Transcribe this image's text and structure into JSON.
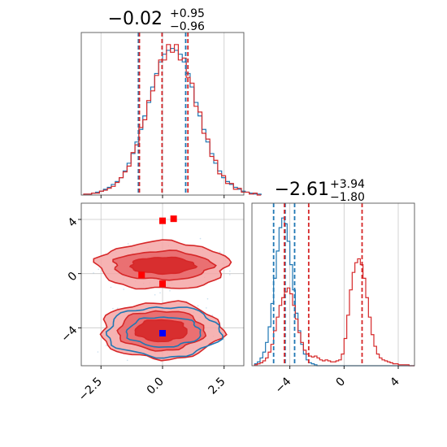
{
  "colors": {
    "blue": "#1f77b4",
    "red": "#d62728",
    "red_fill": "#f4a6a6",
    "red_mid": "#e9686a"
  },
  "chart_data": [
    {
      "panel": "hist-x",
      "type": "step-histogram",
      "title_value": "−0.02",
      "title_upper": "+0.95",
      "title_lower": "−0.96",
      "xlim": [
        -3.3,
        3.3
      ],
      "grid": true,
      "bin_edges_start": -3.2,
      "bin_width": 0.16,
      "series": [
        {
          "name": "",
          "color": "blue",
          "counts": [
            1,
            1,
            2,
            3,
            4,
            6,
            8,
            11,
            14,
            18,
            25,
            33,
            43,
            55,
            68,
            82,
            96,
            112,
            126,
            138,
            146,
            150,
            152,
            150,
            146,
            138,
            126,
            112,
            96,
            82,
            68,
            55,
            43,
            33,
            25,
            18,
            14,
            11,
            8,
            6,
            4,
            3,
            2,
            1,
            1
          ]
        },
        {
          "name": "",
          "color": "red",
          "counts": [
            1,
            1,
            2,
            2,
            4,
            5,
            7,
            9,
            13,
            18,
            24,
            30,
            44,
            52,
            70,
            78,
            98,
            108,
            124,
            140,
            140,
            156,
            148,
            156,
            140,
            142,
            122,
            116,
            92,
            86,
            64,
            58,
            40,
            36,
            22,
            20,
            12,
            12,
            6,
            7,
            3,
            3,
            1,
            2,
            0
          ]
        }
      ],
      "quantile_lines": [
        {
          "color": "blue",
          "values": [
            -0.98,
            -0.02,
            0.94
          ]
        },
        {
          "color": "red",
          "values": [
            -0.94,
            -0.02,
            1.03
          ]
        }
      ]
    },
    {
      "panel": "contour-2d",
      "type": "contour",
      "xlim": [
        -3.3,
        3.3
      ],
      "ylim": [
        -6.8,
        5.2
      ],
      "xticks": [
        "−2.5",
        "0.0",
        "2.5"
      ],
      "xtick_values": [
        -2.5,
        0.0,
        2.5
      ],
      "yticks": [
        "4",
        "0",
        "−4"
      ],
      "ytick_values": [
        4,
        0,
        -4
      ],
      "grid": true,
      "red_modes": [
        {
          "cx": 0.0,
          "cy": 0.6,
          "levels": [
            {
              "rx": 2.65,
              "ry": 1.75
            },
            {
              "rx": 2.0,
              "ry": 1.05
            },
            {
              "rx": 1.3,
              "ry": 0.6
            }
          ]
        },
        {
          "cx": -0.05,
          "cy": -4.2,
          "levels": [
            {
              "rx": 2.45,
              "ry": 2.1
            },
            {
              "rx": 1.75,
              "ry": 1.45
            },
            {
              "rx": 1.05,
              "ry": 0.8
            }
          ]
        }
      ],
      "blue_mode": {
        "cx": 0.05,
        "cy": -4.3,
        "levels": [
          {
            "rx": 2.3,
            "ry": 1.85
          },
          {
            "rx": 1.5,
            "ry": 1.1
          }
        ]
      },
      "red_marks": [
        {
          "x": 0.0,
          "y": 3.9
        },
        {
          "x": -0.85,
          "y": -0.1
        },
        {
          "x": 0.0,
          "y": -0.75
        },
        {
          "x": 0.45,
          "y": 4.05
        }
      ],
      "blue_marks": [
        {
          "x": 0.0,
          "y": -4.4
        }
      ]
    },
    {
      "panel": "hist-y",
      "type": "step-histogram",
      "title_value": "−2.61",
      "title_upper": "+3.94",
      "title_lower": "−1.80",
      "xlim": [
        -6.8,
        5.2
      ],
      "xticks": [
        "−4",
        "0",
        "4"
      ],
      "xtick_values": [
        -4,
        0,
        4
      ],
      "grid": true,
      "bin_edges_start": -6.6,
      "bin_width": 0.2,
      "series": [
        {
          "name": "",
          "color": "blue",
          "counts": [
            2,
            4,
            8,
            14,
            24,
            40,
            64,
            90,
            118,
            142,
            152,
            146,
            128,
            104,
            78,
            54,
            36,
            22,
            12,
            6,
            3,
            2,
            1,
            0,
            0,
            0,
            0,
            0,
            0,
            0,
            0,
            0,
            0,
            0,
            0,
            0,
            0,
            0,
            0,
            0,
            0,
            0,
            0,
            0,
            0,
            0,
            0,
            0,
            0,
            0,
            0,
            0,
            0,
            0,
            0,
            0,
            0,
            0,
            0
          ]
        },
        {
          "name": "",
          "color": "red",
          "counts": [
            1,
            2,
            3,
            5,
            8,
            14,
            22,
            36,
            50,
            62,
            70,
            76,
            80,
            74,
            62,
            48,
            34,
            24,
            16,
            12,
            10,
            9,
            10,
            8,
            6,
            5,
            6,
            5,
            4,
            4,
            5,
            6,
            12,
            28,
            52,
            78,
            96,
            106,
            110,
            104,
            90,
            70,
            50,
            32,
            20,
            12,
            8,
            6,
            5,
            4,
            3,
            2,
            2,
            1,
            1,
            1,
            1,
            0,
            0
          ]
        }
      ],
      "quantile_lines": [
        {
          "color": "blue",
          "values": [
            -5.2,
            -4.35,
            -3.65
          ]
        },
        {
          "color": "red",
          "values": [
            -4.4,
            -2.61,
            1.33
          ]
        }
      ]
    }
  ]
}
